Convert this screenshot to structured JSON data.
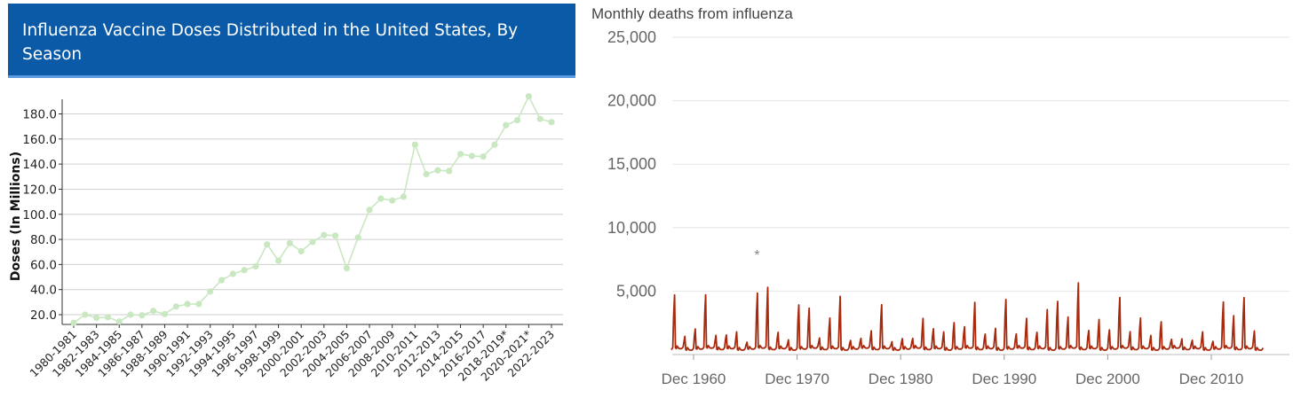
{
  "left_chart": {
    "title": "Influenza Vaccine Doses Distributed in the United States, By Season",
    "chart_data": {
      "type": "line",
      "title": "Influenza Vaccine Doses Distributed in the United States, By Season",
      "xlabel": "",
      "ylabel": "Doses (In Millions)",
      "ylim": [
        12,
        195
      ],
      "yticks": [
        "20.0",
        "40.0",
        "60.0",
        "80.0",
        "100.0",
        "120.0",
        "140.0",
        "160.0",
        "180.0"
      ],
      "categories": [
        "1980-1981",
        "1981-1982",
        "1982-1983",
        "1983-1984",
        "1984-1985",
        "1985-1986",
        "1986-1987",
        "1987-1988",
        "1988-1989",
        "1989-1990",
        "1990-1991",
        "1991-1992",
        "1992-1993",
        "1993-1994",
        "1994-1995",
        "1995-1996",
        "1996-1997",
        "1997-1998",
        "1998-1999",
        "1999-2000",
        "2000-2001",
        "2001-2002",
        "2002-2003",
        "2003-2004",
        "2004-2005",
        "2005-2006",
        "2006-2007",
        "2007-2008",
        "2008-2009",
        "2009-2010",
        "2010-2011",
        "2011-2012",
        "2012-2013",
        "2013-2014",
        "2014-2015",
        "2015-2016",
        "2016-2017",
        "2017-2018",
        "2018-2019*",
        "2019-2020",
        "2020-2021*",
        "2021-2022",
        "2022-2023"
      ],
      "tick_labels": [
        "1980-1981",
        "1982-1983",
        "1984-1985",
        "1986-1987",
        "1988-1989",
        "1990-1991",
        "1992-1993",
        "1994-1995",
        "1996-1997",
        "1998-1999",
        "2000-2001",
        "2002-2003",
        "2004-2005",
        "2006-2007",
        "2008-2009",
        "2010-2011",
        "2012-2013",
        "2014-2015",
        "2016-2017",
        "2018-2019*",
        "2020-2021*",
        "2022-2023"
      ],
      "values": [
        13.5,
        20.0,
        17.5,
        18.0,
        14.5,
        20.0,
        19.5,
        23.0,
        20.5,
        26.5,
        28.5,
        28.5,
        38.5,
        47.5,
        52.5,
        55.5,
        58.5,
        76.0,
        63.0,
        77.0,
        70.5,
        78.0,
        83.5,
        83.0,
        57.0,
        81.5,
        103.5,
        112.5,
        111.0,
        114.0,
        155.5,
        132.0,
        135.0,
        134.5,
        148.0,
        146.5,
        146.0,
        155.5,
        171.0,
        175.0,
        194.0,
        176.0,
        173.5
      ],
      "color": "#c9e8c1",
      "grid": true
    }
  },
  "right_chart": {
    "title": "Monthly deaths from influenza",
    "chart_data": {
      "type": "line",
      "title": "Monthly deaths from influenza",
      "xlabel": "",
      "ylabel": "",
      "ylim": [
        0,
        25000
      ],
      "yticks": [
        "5,000",
        "10,000",
        "15,000",
        "20,000",
        "25,000"
      ],
      "x_start": "Jan 1958",
      "x_end": "Dec 2015",
      "xticks": [
        "Dec 1960",
        "Dec 1970",
        "Dec 1980",
        "Dec 1990",
        "Dec 2000",
        "Dec 2010"
      ],
      "annual_peaks": [
        {
          "year": 1958,
          "value": 1600
        },
        {
          "year": 1959,
          "value": 6500
        },
        {
          "year": 1960,
          "value": 1900
        },
        {
          "year": 1961,
          "value": 2700
        },
        {
          "year": 1962,
          "value": 6500
        },
        {
          "year": 1963,
          "value": 2000
        },
        {
          "year": 1964,
          "value": 2000
        },
        {
          "year": 1965,
          "value": 2400
        },
        {
          "year": 1966,
          "value": 1200
        },
        {
          "year": 1967,
          "value": 6700
        },
        {
          "year": 1968,
          "value": 7400
        },
        {
          "year": 1969,
          "value": 2300
        },
        {
          "year": 1970,
          "value": 1500
        },
        {
          "year": 1971,
          "value": 5400
        },
        {
          "year": 1972,
          "value": 5000
        },
        {
          "year": 1973,
          "value": 1700
        },
        {
          "year": 1974,
          "value": 3900
        },
        {
          "year": 1975,
          "value": 6400
        },
        {
          "year": 1976,
          "value": 1400
        },
        {
          "year": 1977,
          "value": 1600
        },
        {
          "year": 1978,
          "value": 2500
        },
        {
          "year": 1979,
          "value": 5400
        },
        {
          "year": 1980,
          "value": 1300
        },
        {
          "year": 1981,
          "value": 1600
        },
        {
          "year": 1982,
          "value": 1600
        },
        {
          "year": 1983,
          "value": 3900
        },
        {
          "year": 1984,
          "value": 2700
        },
        {
          "year": 1985,
          "value": 2400
        },
        {
          "year": 1986,
          "value": 3400
        },
        {
          "year": 1987,
          "value": 2900
        },
        {
          "year": 1988,
          "value": 5700
        },
        {
          "year": 1989,
          "value": 2100
        },
        {
          "year": 1990,
          "value": 2800
        },
        {
          "year": 1991,
          "value": 6000
        },
        {
          "year": 1992,
          "value": 2100
        },
        {
          "year": 1993,
          "value": 3900
        },
        {
          "year": 1994,
          "value": 2300
        },
        {
          "year": 1995,
          "value": 4900
        },
        {
          "year": 1996,
          "value": 5800
        },
        {
          "year": 1997,
          "value": 4000
        },
        {
          "year": 1998,
          "value": 7900
        },
        {
          "year": 1999,
          "value": 2500
        },
        {
          "year": 2000,
          "value": 3800
        },
        {
          "year": 2001,
          "value": 2600
        },
        {
          "year": 2002,
          "value": 6200
        },
        {
          "year": 2003,
          "value": 2400
        },
        {
          "year": 2004,
          "value": 3900
        },
        {
          "year": 2005,
          "value": 2000
        },
        {
          "year": 2006,
          "value": 3500
        },
        {
          "year": 2007,
          "value": 1500
        },
        {
          "year": 2008,
          "value": 1600
        },
        {
          "year": 2009,
          "value": 1400
        },
        {
          "year": 2010,
          "value": 2400
        },
        {
          "year": 2011,
          "value": 1300
        },
        {
          "year": 2012,
          "value": 5700
        },
        {
          "year": 2013,
          "value": 4200
        },
        {
          "year": 2014,
          "value": 6200
        },
        {
          "year": 2015,
          "value": 2500
        }
      ],
      "annotation": "*",
      "color": "#a8290c",
      "grid": true
    }
  }
}
